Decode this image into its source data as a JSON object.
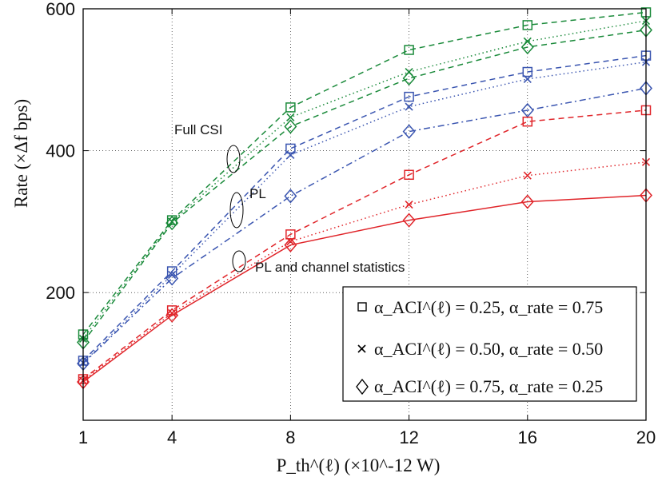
{
  "chart_data": {
    "type": "line",
    "x": [
      1,
      4,
      8,
      12,
      16,
      20
    ],
    "xticks": [
      "1",
      "4",
      "8",
      "12",
      "16",
      "20"
    ],
    "yticks": [
      "200",
      "400",
      "600"
    ],
    "ytick_values": [
      200,
      400,
      600
    ],
    "xlim": [
      1,
      20
    ],
    "ylim": [
      20,
      600
    ],
    "xlabel": "P_th^(ℓ) (×10^-12 W)",
    "ylabel": "Rate (×Δf bps)",
    "grid": true,
    "legend_position": "bottom-right",
    "colors": {
      "full_csi": "#1a8a3a",
      "pl": "#3a55b0",
      "pl_stats": "#e0252a"
    },
    "legend": [
      {
        "marker": "square",
        "alpha_aci": "0.25",
        "alpha_rate": "0.75",
        "text": "α_ACI^(ℓ) = 0.25, α_rate = 0.75"
      },
      {
        "marker": "cross",
        "alpha_aci": "0.50",
        "alpha_rate": "0.50",
        "text": "α_ACI^(ℓ) = 0.50, α_rate = 0.50"
      },
      {
        "marker": "diamond",
        "alpha_aci": "0.75",
        "alpha_rate": "0.25",
        "text": "α_ACI^(ℓ) = 0.75, α_rate = 0.25"
      }
    ],
    "annotations": [
      {
        "text": "Full CSI"
      },
      {
        "text": "PL"
      },
      {
        "text": "PL and channel statistics"
      }
    ],
    "series": [
      {
        "group": "Full CSI",
        "marker": "square",
        "color": "#1a8a3a",
        "dash": "dash",
        "values": [
          141,
          302,
          461,
          542,
          577,
          595
        ]
      },
      {
        "group": "Full CSI",
        "marker": "cross",
        "color": "#1a8a3a",
        "dash": "dot",
        "values": [
          135,
          300,
          447,
          511,
          554,
          583
        ]
      },
      {
        "group": "Full CSI",
        "marker": "diamond",
        "color": "#1a8a3a",
        "dash": "dash",
        "values": [
          130,
          298,
          434,
          502,
          546,
          570
        ]
      },
      {
        "group": "PL",
        "marker": "square",
        "color": "#3a55b0",
        "dash": "dash",
        "values": [
          104,
          230,
          403,
          476,
          511,
          534
        ]
      },
      {
        "group": "PL",
        "marker": "cross",
        "color": "#3a55b0",
        "dash": "dot",
        "values": [
          101,
          225,
          394,
          462,
          501,
          525
        ]
      },
      {
        "group": "PL",
        "marker": "diamond",
        "color": "#3a55b0",
        "dash": "dashdot",
        "values": [
          100,
          220,
          336,
          427,
          457,
          488
        ]
      },
      {
        "group": "PL and channel statistics",
        "marker": "square",
        "color": "#e0252a",
        "dash": "dash",
        "values": [
          78,
          175,
          282,
          366,
          441,
          457
        ]
      },
      {
        "group": "PL and channel statistics",
        "marker": "cross",
        "color": "#e0252a",
        "dash": "dot",
        "values": [
          76,
          171,
          272,
          324,
          365,
          384
        ]
      },
      {
        "group": "PL and channel statistics",
        "marker": "diamond",
        "color": "#e0252a",
        "dash": "solid",
        "values": [
          74,
          168,
          267,
          302,
          328,
          337
        ]
      }
    ]
  }
}
